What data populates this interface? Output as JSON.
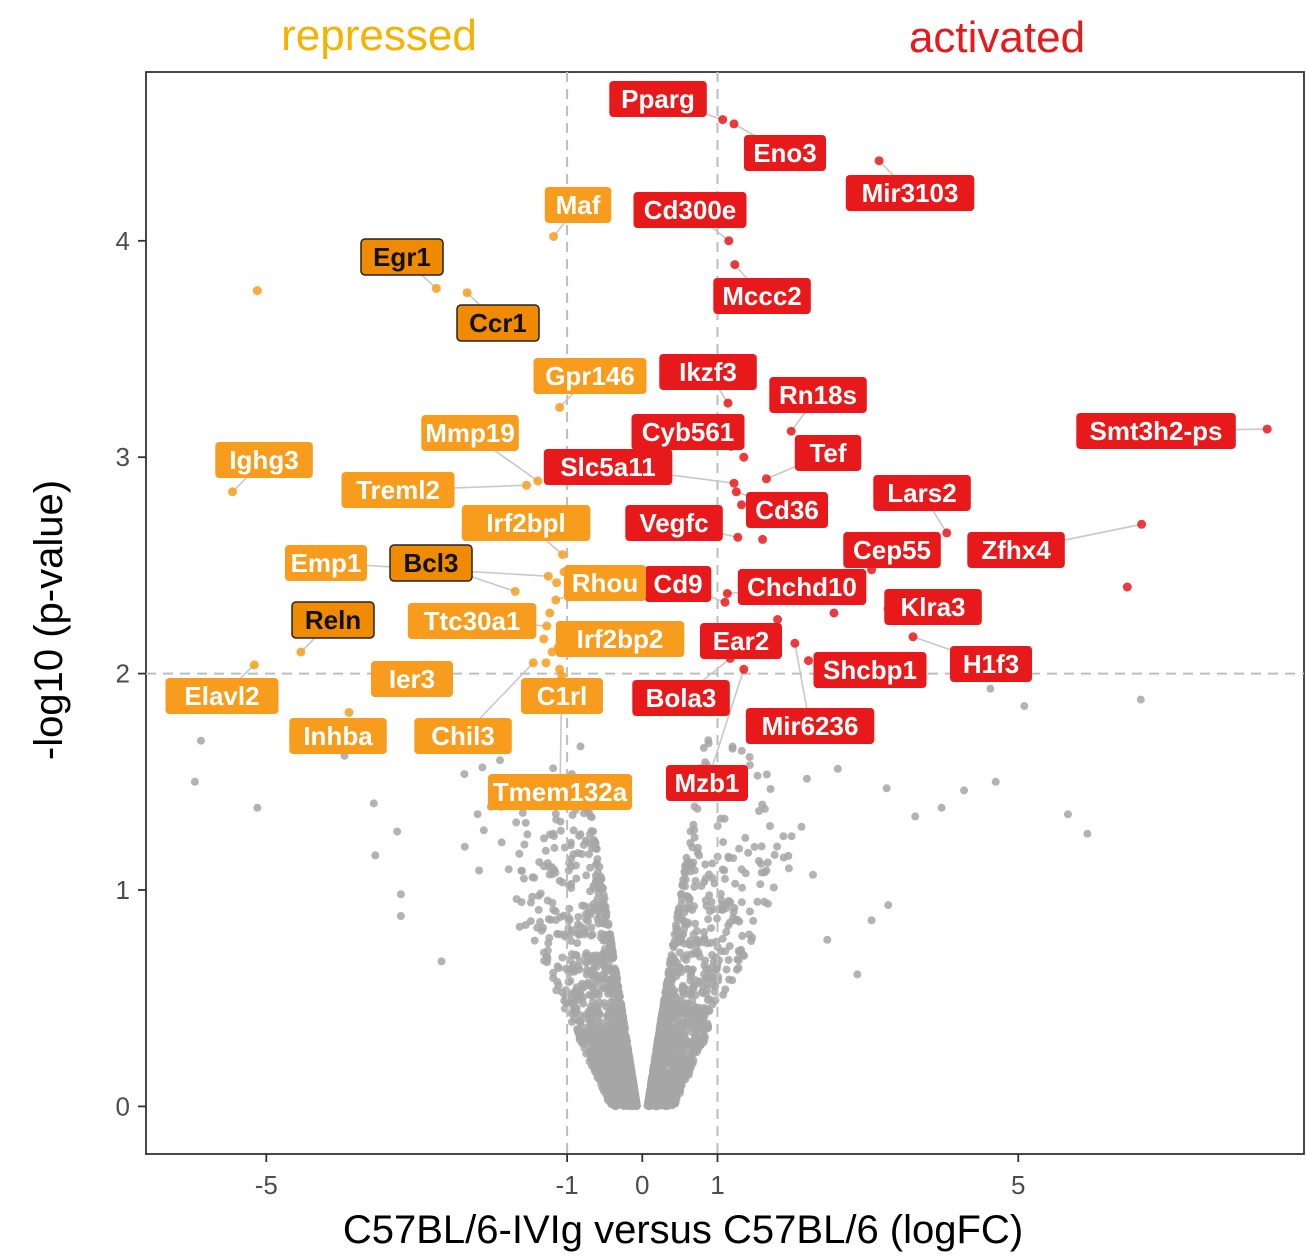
{
  "colors": {
    "repressed": "#f79c1d",
    "activated": "#e8191a",
    "background_points": "#a6a6a6",
    "highlight_fill": "#f08a00",
    "grid_dash": "#bdbdbd",
    "panel_border": "#333333"
  },
  "chart_data": {
    "type": "scatter",
    "title_left": "repressed",
    "title_right": "activated",
    "xlabel": "C57BL/6-IVIg versus C57BL/6 (logFC)",
    "ylabel": "-log10 (p-value)",
    "xlim": [
      -6.6,
      8.8
    ],
    "ylim": [
      -0.22,
      4.78
    ],
    "x_ticks": [
      -5,
      -1,
      0,
      1,
      5
    ],
    "x_tick_labels": [
      "-5",
      "-1",
      "0",
      "1",
      "5"
    ],
    "y_ticks": [
      0,
      1,
      2,
      3,
      4
    ],
    "y_tick_labels": [
      "0",
      "1",
      "2",
      "3",
      "4"
    ],
    "thresholds": {
      "logFC": [
        -1,
        1
      ],
      "neg_log10_p": 2
    },
    "labeled_genes": [
      {
        "gene": "Pparg",
        "x": 1.07,
        "y": 4.56,
        "group": "activated"
      },
      {
        "gene": "Eno3",
        "x": 1.22,
        "y": 4.54,
        "group": "activated"
      },
      {
        "gene": "Mir3103",
        "x": 3.15,
        "y": 4.37,
        "group": "activated"
      },
      {
        "gene": "Cd300e",
        "x": 1.15,
        "y": 4.0,
        "group": "activated"
      },
      {
        "gene": "Mccc2",
        "x": 1.23,
        "y": 3.89,
        "group": "activated"
      },
      {
        "gene": "Ikzf3",
        "x": 1.14,
        "y": 3.25,
        "group": "activated"
      },
      {
        "gene": "Rn18s",
        "x": 1.98,
        "y": 3.12,
        "group": "activated"
      },
      {
        "gene": "Cyb561",
        "x": 1.18,
        "y": 3.05,
        "group": "activated"
      },
      {
        "gene": "Smt3h2-ps",
        "x": 8.31,
        "y": 3.13,
        "group": "activated"
      },
      {
        "gene": "Tef",
        "x": 1.65,
        "y": 2.9,
        "group": "activated"
      },
      {
        "gene": "Slc5a11",
        "x": 1.22,
        "y": 2.88,
        "group": "activated"
      },
      {
        "gene": "Cd36",
        "x": 1.25,
        "y": 2.84,
        "group": "activated"
      },
      {
        "gene": "Lars2",
        "x": 4.05,
        "y": 2.65,
        "group": "activated"
      },
      {
        "gene": "Vegfc",
        "x": 1.27,
        "y": 2.63,
        "group": "activated"
      },
      {
        "gene": "Zfhx4",
        "x": 6.64,
        "y": 2.69,
        "group": "activated"
      },
      {
        "gene": "Cep55",
        "x": 3.05,
        "y": 2.48,
        "group": "activated"
      },
      {
        "gene": "Chchd10",
        "x": 1.13,
        "y": 2.37,
        "group": "activated"
      },
      {
        "gene": "Cd9",
        "x": 1.1,
        "y": 2.33,
        "group": "activated"
      },
      {
        "gene": "Klra3",
        "x": 3.27,
        "y": 2.3,
        "group": "activated"
      },
      {
        "gene": "Ear2",
        "x": 1.8,
        "y": 2.25,
        "group": "activated"
      },
      {
        "gene": "H1f3",
        "x": 3.6,
        "y": 2.17,
        "group": "activated"
      },
      {
        "gene": "Shcbp1",
        "x": 2.21,
        "y": 2.06,
        "group": "activated"
      },
      {
        "gene": "Mir6236",
        "x": 2.03,
        "y": 2.14,
        "group": "activated"
      },
      {
        "gene": "Bola3",
        "x": 1.17,
        "y": 2.07,
        "group": "activated"
      },
      {
        "gene": "Mzb1",
        "x": 1.35,
        "y": 2.02,
        "group": "activated"
      },
      {
        "gene": "Maf",
        "x": -1.18,
        "y": 4.02,
        "group": "repressed"
      },
      {
        "gene": "Egr1",
        "x": -2.74,
        "y": 3.78,
        "group": "repressed",
        "highlight": true
      },
      {
        "gene": "Ccr1",
        "x": -2.33,
        "y": 3.76,
        "group": "repressed",
        "highlight": true
      },
      {
        "gene": "Gpr146",
        "x": -1.1,
        "y": 3.23,
        "group": "repressed"
      },
      {
        "gene": "Mmp19",
        "x": -1.39,
        "y": 2.89,
        "group": "repressed"
      },
      {
        "gene": "Ighg3",
        "x": -5.45,
        "y": 2.84,
        "group": "repressed"
      },
      {
        "gene": "Treml2",
        "x": -1.54,
        "y": 2.87,
        "group": "repressed"
      },
      {
        "gene": "Irf2bpl",
        "x": -1.06,
        "y": 2.55,
        "group": "repressed"
      },
      {
        "gene": "Emp1",
        "x": -1.25,
        "y": 2.45,
        "group": "repressed"
      },
      {
        "gene": "Bcl3",
        "x": -1.69,
        "y": 2.38,
        "group": "repressed",
        "highlight": true
      },
      {
        "gene": "Rhou",
        "x": -1.15,
        "y": 2.34,
        "group": "repressed"
      },
      {
        "gene": "Reln",
        "x": -4.54,
        "y": 2.1,
        "group": "repressed",
        "highlight": true
      },
      {
        "gene": "Ttc30a1",
        "x": -1.27,
        "y": 2.22,
        "group": "repressed"
      },
      {
        "gene": "Irf2bp2",
        "x": -1.2,
        "y": 2.1,
        "group": "repressed"
      },
      {
        "gene": "Elavl2",
        "x": -5.16,
        "y": 2.04,
        "group": "repressed"
      },
      {
        "gene": "Ier3",
        "x": -3.5,
        "y": 2.0,
        "group": "repressed"
      },
      {
        "gene": "C1rl",
        "x": -1.1,
        "y": 2.02,
        "group": "repressed"
      },
      {
        "gene": "Inhba",
        "x": -3.9,
        "y": 1.82,
        "group": "repressed"
      },
      {
        "gene": "Chil3",
        "x": -1.45,
        "y": 2.05,
        "group": "repressed"
      },
      {
        "gene": "Tmem132a",
        "x": -1.07,
        "y": 1.99,
        "group": "repressed"
      }
    ],
    "unlabeled_significant": [
      {
        "x": -5.12,
        "y": 3.77,
        "group": "repressed"
      },
      {
        "x": -1.04,
        "y": 2.47,
        "group": "repressed"
      },
      {
        "x": -1.14,
        "y": 2.42,
        "group": "repressed"
      },
      {
        "x": -1.23,
        "y": 2.28,
        "group": "repressed"
      },
      {
        "x": -1.31,
        "y": 2.16,
        "group": "repressed"
      },
      {
        "x": -1.28,
        "y": 2.05,
        "group": "repressed"
      },
      {
        "x": -1.12,
        "y": 2.12,
        "group": "repressed"
      },
      {
        "x": 1.35,
        "y": 3.0,
        "group": "activated"
      },
      {
        "x": 1.32,
        "y": 2.78,
        "group": "activated"
      },
      {
        "x": 1.6,
        "y": 2.62,
        "group": "activated"
      },
      {
        "x": 6.45,
        "y": 2.4,
        "group": "activated"
      },
      {
        "x": 2.55,
        "y": 2.28,
        "group": "activated"
      },
      {
        "x": 2.85,
        "y": 2.45,
        "group": "activated"
      },
      {
        "x": 1.52,
        "y": 2.2,
        "group": "activated"
      }
    ],
    "background_outliers": [
      {
        "x": -5.87,
        "y": 1.69
      },
      {
        "x": -5.95,
        "y": 1.5
      },
      {
        "x": -5.12,
        "y": 1.38
      },
      {
        "x": -3.96,
        "y": 1.62
      },
      {
        "x": -3.57,
        "y": 1.4
      },
      {
        "x": -3.26,
        "y": 1.27
      },
      {
        "x": -3.55,
        "y": 1.16
      },
      {
        "x": -3.21,
        "y": 0.98
      },
      {
        "x": -3.21,
        "y": 0.88
      },
      {
        "x": -2.67,
        "y": 0.67
      },
      {
        "x": -2.36,
        "y": 1.2
      },
      {
        "x": -2.17,
        "y": 1.09
      },
      {
        "x": -1.87,
        "y": 1.22
      },
      {
        "x": -1.63,
        "y": 0.83
      },
      {
        "x": -1.55,
        "y": 1.31
      },
      {
        "x": 2.6,
        "y": 1.56
      },
      {
        "x": 3.25,
        "y": 1.47
      },
      {
        "x": 3.63,
        "y": 1.34
      },
      {
        "x": 3.98,
        "y": 1.38
      },
      {
        "x": 4.28,
        "y": 1.46
      },
      {
        "x": 4.7,
        "y": 1.5
      },
      {
        "x": 3.05,
        "y": 0.86
      },
      {
        "x": 3.27,
        "y": 0.93
      },
      {
        "x": 2.86,
        "y": 0.61
      },
      {
        "x": 2.46,
        "y": 0.77
      },
      {
        "x": 5.66,
        "y": 1.35
      },
      {
        "x": 5.92,
        "y": 1.26
      },
      {
        "x": 5.08,
        "y": 1.85
      },
      {
        "x": 6.63,
        "y": 1.88
      },
      {
        "x": 4.63,
        "y": 1.93
      },
      {
        "x": 2.27,
        "y": 1.07
      },
      {
        "x": 1.95,
        "y": 1.1
      }
    ]
  }
}
